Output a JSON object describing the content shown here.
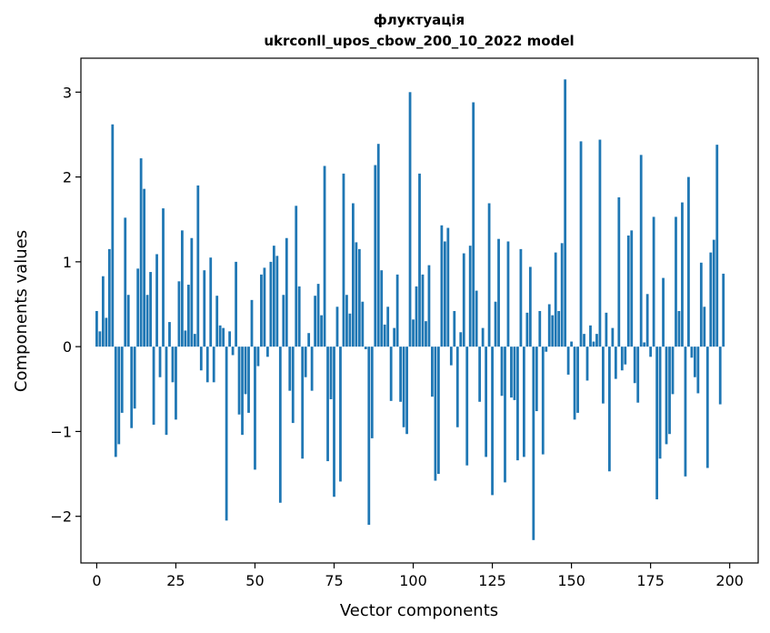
{
  "chart_data": {
    "type": "bar",
    "title": "флуктуація",
    "subtitle": "ukrconll_upos_cbow_200_10_2022 model",
    "xlabel": "Vector components",
    "ylabel": "Components values",
    "xlim": [
      -5,
      209
    ],
    "ylim": [
      -2.55,
      3.4
    ],
    "xticks": [
      0,
      25,
      50,
      75,
      100,
      125,
      150,
      175,
      200
    ],
    "yticks": [
      -2,
      -1,
      0,
      1,
      2,
      3
    ],
    "ytick_labels": [
      "−2",
      "−1",
      "0",
      "1",
      "2",
      "3"
    ],
    "bar_color": "#1f77b4",
    "grid": false,
    "values": [
      0.42,
      0.18,
      0.83,
      0.34,
      1.15,
      2.62,
      -1.3,
      -1.15,
      -0.78,
      1.52,
      0.61,
      -0.96,
      -0.73,
      0.92,
      2.22,
      1.86,
      0.61,
      0.88,
      -0.92,
      1.09,
      -0.36,
      1.63,
      -1.04,
      0.29,
      -0.42,
      -0.86,
      0.77,
      1.37,
      0.19,
      0.73,
      1.28,
      0.15,
      1.9,
      -0.28,
      0.9,
      -0.42,
      1.05,
      -0.42,
      0.6,
      0.25,
      0.22,
      -2.05,
      0.18,
      -0.1,
      1.0,
      -0.8,
      -1.04,
      -0.56,
      -0.78,
      0.55,
      -1.45,
      -0.23,
      0.85,
      0.93,
      -0.12,
      1.0,
      1.19,
      1.07,
      -1.84,
      0.61,
      1.28,
      -0.52,
      -0.9,
      1.66,
      0.71,
      -1.32,
      -0.36,
      0.16,
      -0.52,
      0.6,
      0.74,
      0.37,
      2.13,
      -1.35,
      -0.62,
      -1.77,
      0.47,
      -1.59,
      2.04,
      0.61,
      0.39,
      1.69,
      1.23,
      1.15,
      0.53,
      -0.03,
      -2.1,
      -1.08,
      2.14,
      2.39,
      0.9,
      0.26,
      0.47,
      -0.64,
      0.22,
      0.85,
      -0.65,
      -0.95,
      -1.03,
      3.0,
      0.32,
      0.71,
      2.04,
      0.85,
      0.3,
      0.96,
      -0.59,
      -1.58,
      -1.5,
      1.43,
      1.24,
      1.4,
      -0.22,
      0.42,
      -0.95,
      0.17,
      1.1,
      -1.4,
      1.19,
      2.88,
      0.66,
      -0.65,
      0.22,
      -1.3,
      1.69,
      -1.75,
      0.53,
      1.27,
      -0.58,
      -1.6,
      1.24,
      -0.6,
      -0.63,
      -1.34,
      1.15,
      -1.3,
      0.4,
      0.94,
      -2.28,
      -0.76,
      0.42,
      -1.27,
      -0.06,
      0.5,
      0.37,
      1.11,
      0.42,
      1.22,
      3.15,
      -0.33,
      0.06,
      -0.86,
      -0.78,
      2.42,
      0.15,
      -0.4,
      0.25,
      0.06,
      0.15,
      2.44,
      -0.67,
      0.4,
      -1.47,
      0.22,
      -0.38,
      1.76,
      -0.28,
      -0.21,
      1.31,
      1.37,
      -0.43,
      -0.66,
      2.26,
      0.05,
      0.62,
      -0.12,
      1.53,
      -1.8,
      -1.32,
      0.81,
      -1.15,
      -1.03,
      -0.56,
      1.53,
      0.42,
      1.7,
      -1.53,
      2.0,
      -0.13,
      -0.36,
      -0.55,
      0.99,
      0.47,
      -1.43,
      1.11,
      1.26,
      2.38,
      -0.68,
      0.86
    ]
  }
}
